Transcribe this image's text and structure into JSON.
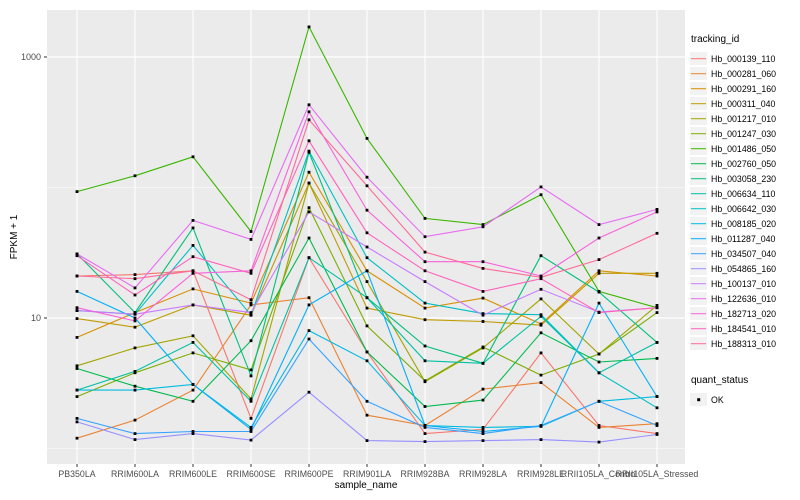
{
  "chart_data": {
    "type": "line",
    "title": "",
    "xlabel": "sample_name",
    "ylabel": "FPKM + 1",
    "y_scale": "log10",
    "y_ticks": [
      {
        "label": "10",
        "value": 10
      },
      {
        "label": "1000",
        "value": 1000
      }
    ],
    "y_minor_gridlines": [
      1,
      100
    ],
    "panel_background": "#EBEBEB",
    "gridline_color": "#FFFFFF",
    "point_color": "#000000",
    "axis_text_color": "#4D4D4D",
    "categories": [
      "PB350LA",
      "RRIM600LA",
      "RRIM600LE",
      "RRIM600SE",
      "RRIM600PE",
      "RRIM901LA",
      "RRIM928BA",
      "RRIM928LA",
      "RRIM928LE",
      "RRII105LA_Control",
      "RRII105LA_Stressed"
    ],
    "series": [
      {
        "name": "Hb_000139_110",
        "color": "#F8766D",
        "values": [
          21,
          21.5,
          23,
          1.7,
          29,
          5.5,
          1.3,
          1.4,
          5.4,
          1.5,
          1.3
        ]
      },
      {
        "name": "Hb_000281_060",
        "color": "#EA8331",
        "values": [
          1.2,
          1.65,
          2.8,
          12.6,
          14.3,
          1.8,
          1.5,
          2.85,
          3.2,
          1.45,
          1.55
        ]
      },
      {
        "name": "Hb_000291_160",
        "color": "#D89000",
        "values": [
          7.1,
          11,
          16.7,
          13,
          131,
          23,
          11.9,
          14.2,
          9.0,
          23,
          21
        ]
      },
      {
        "name": "Hb_000311_040",
        "color": "#C09B00",
        "values": [
          9.9,
          8.5,
          12.6,
          10.5,
          108,
          11.9,
          9.7,
          9.4,
          8.8,
          22,
          22
        ]
      },
      {
        "name": "Hb_001217_010",
        "color": "#A3A500",
        "values": [
          4.3,
          5.9,
          7.3,
          2.4,
          108,
          19,
          3.25,
          5.9,
          14,
          5.3,
          12.5
        ]
      },
      {
        "name": "Hb_001247_030",
        "color": "#7CAE00",
        "values": [
          2.5,
          3.8,
          5.4,
          4.0,
          70,
          8.7,
          3.3,
          6.0,
          3.65,
          5.3,
          11
        ]
      },
      {
        "name": "Hb_001486_050",
        "color": "#39B600",
        "values": [
          93,
          123,
          172,
          46,
          1700,
          238,
          58,
          52,
          88,
          16,
          12
        ]
      },
      {
        "name": "Hb_002760_050",
        "color": "#00BB4E",
        "values": [
          4.1,
          3.0,
          2.3,
          6.7,
          41,
          5.5,
          2.1,
          2.35,
          7.7,
          4.6,
          4.9
        ]
      },
      {
        "name": "Hb_003058_230",
        "color": "#00BF7D",
        "values": [
          31,
          11,
          49,
          3.6,
          186,
          14.3,
          6.1,
          4.5,
          30,
          15.8,
          6.5
        ]
      },
      {
        "name": "Hb_006634_110",
        "color": "#00C1A3",
        "values": [
          2.8,
          3.9,
          6.5,
          2.3,
          29,
          14.3,
          4.7,
          4.5,
          10.3,
          3.8,
          6.5
        ]
      },
      {
        "name": "Hb_006642_030",
        "color": "#00BFC4",
        "values": [
          11.4,
          10.7,
          36,
          10.5,
          190,
          29,
          13,
          10.8,
          10.6,
          3.8,
          2.05
        ]
      },
      {
        "name": "Hb_008185_020",
        "color": "#00BAE0",
        "values": [
          2.8,
          2.8,
          3.1,
          1.45,
          8.0,
          4.7,
          1.5,
          1.45,
          1.48,
          2.3,
          2.5
        ]
      },
      {
        "name": "Hb_011287_040",
        "color": "#00B0F6",
        "values": [
          16,
          10,
          3.1,
          1.4,
          12.6,
          23,
          1.5,
          1.35,
          1.48,
          13,
          2.5
        ]
      },
      {
        "name": "Hb_034507_040",
        "color": "#35A2FF",
        "values": [
          1.7,
          1.3,
          1.35,
          1.35,
          6.9,
          2.3,
          1.45,
          1.3,
          1.5,
          2.3,
          1.5
        ]
      },
      {
        "name": "Hb_054865_160",
        "color": "#9590FF",
        "values": [
          1.6,
          1.17,
          1.3,
          1.16,
          2.7,
          1.15,
          1.13,
          1.15,
          1.17,
          1.12,
          1.28
        ]
      },
      {
        "name": "Hb_100137_010",
        "color": "#C77CFF",
        "values": [
          11.4,
          10.7,
          12.6,
          11,
          65,
          35,
          19,
          10.5,
          16.6,
          11.1,
          12
        ]
      },
      {
        "name": "Hb_122636_010",
        "color": "#E76BF3",
        "values": [
          31,
          17,
          56,
          40,
          430,
          120,
          42,
          50,
          101,
          52,
          68
        ]
      },
      {
        "name": "Hb_182713_020",
        "color": "#FA62DB",
        "values": [
          12,
          9.5,
          22,
          23,
          380,
          67,
          27,
          27,
          21,
          41,
          65
        ]
      },
      {
        "name": "Hb_184541_010",
        "color": "#FF62BC",
        "values": [
          30,
          15,
          29.5,
          22,
          228,
          45,
          23,
          16,
          20,
          11,
          12
        ]
      },
      {
        "name": "Hb_188313_010",
        "color": "#FF6A98",
        "values": [
          21,
          20,
          23,
          13.8,
          330,
          103,
          32,
          24,
          20.5,
          28,
          44.6
        ]
      }
    ],
    "legend_position": "right"
  },
  "legend": {
    "tracking_title": "tracking_id",
    "quant_title": "quant_status",
    "quant_items": [
      {
        "label": "OK"
      }
    ]
  }
}
